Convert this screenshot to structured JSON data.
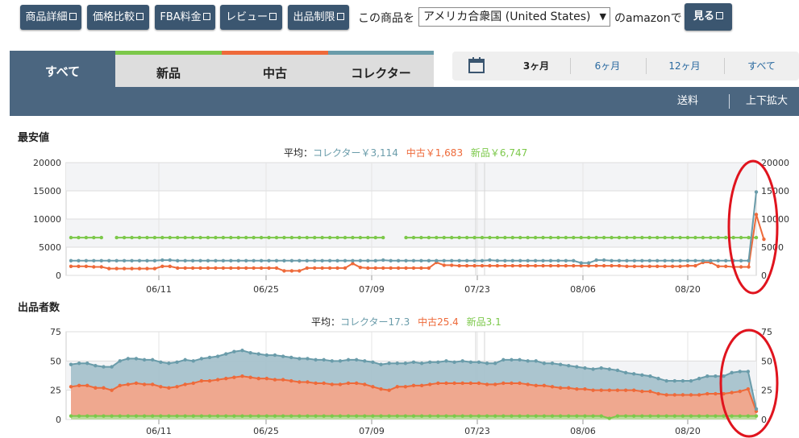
{
  "toolbar": {
    "buttons": [
      {
        "label": "商品詳細",
        "name": "product-detail-button"
      },
      {
        "label": "価格比較",
        "name": "price-compare-button"
      },
      {
        "label": "FBA料金",
        "name": "fba-fee-button"
      },
      {
        "label": "レビュー",
        "name": "review-button"
      },
      {
        "label": "出品制限",
        "name": "listing-restriction-button"
      }
    ],
    "product_label": "この商品を",
    "country_value": "アメリカ合衆国 (United States)",
    "amazon_label": "のamazonで",
    "view_label": "見る"
  },
  "tabs": {
    "all": "すべて",
    "new": "新品",
    "used": "中古",
    "collector": "コレクター"
  },
  "range": {
    "items": [
      "3ヶ月",
      "6ヶ月",
      "12ヶ月",
      "すべて"
    ]
  },
  "bar": {
    "shipping": "送料",
    "zoom": "上下拡大"
  },
  "colors": {
    "collector": "#6a9caa",
    "used": "#ee6a3a",
    "new": "#7cc84a",
    "annotation": "#e0141e"
  },
  "chart_data": [
    {
      "type": "line",
      "title": "最安値",
      "avg_prefix": "平均：",
      "avg_labels": {
        "collector": "コレクター￥3,114",
        "used": "中古￥1,683",
        "new": "新品￥6,747"
      },
      "yticks": [
        0,
        5000,
        10000,
        15000,
        20000
      ],
      "ytick_labels": [
        "0",
        "5000",
        "10000",
        "15000",
        "20000"
      ],
      "ylim": [
        0,
        20000
      ],
      "xticks": [
        "06/11",
        "06/25",
        "07/09",
        "07/23",
        "08/06",
        "08/20"
      ],
      "series": [
        {
          "key": "collector",
          "values": [
            2600,
            2600,
            2600,
            2600,
            2600,
            2600,
            2600,
            2600,
            2600,
            2600,
            2600,
            2600,
            2700,
            2700,
            2600,
            2600,
            2600,
            2600,
            2600,
            2600,
            2600,
            2600,
            2600,
            2600,
            2600,
            2600,
            2600,
            2600,
            2600,
            2600,
            2600,
            2600,
            2600,
            2600,
            2600,
            2600,
            2600,
            2600,
            2600,
            2600,
            2600,
            2700,
            2600,
            2600,
            2600,
            2600,
            2600,
            2600,
            2600,
            2600,
            2600,
            2600,
            2600,
            2600,
            2600,
            2700,
            2600,
            2600,
            2600,
            2600,
            2600,
            2600,
            2600,
            2600,
            2600,
            2600,
            2600,
            2200,
            2200,
            2700,
            2700,
            2600,
            2600,
            2600,
            2600,
            2600,
            2600,
            2600,
            2600,
            2600,
            2600,
            2600,
            2600,
            2600,
            2600,
            2600,
            2600,
            2600,
            2600,
            2600,
            14800
          ]
        },
        {
          "key": "used",
          "values": [
            1600,
            1600,
            1600,
            1500,
            1500,
            1200,
            1200,
            1200,
            1200,
            1200,
            1200,
            1200,
            1600,
            1600,
            1300,
            1300,
            1300,
            1300,
            1300,
            1300,
            1300,
            1300,
            1300,
            1300,
            1300,
            1300,
            1300,
            1300,
            800,
            800,
            800,
            1300,
            1300,
            1300,
            1300,
            1300,
            1300,
            2100,
            1400,
            1300,
            1300,
            1300,
            1300,
            1300,
            1300,
            1300,
            1300,
            1300,
            2300,
            1800,
            1800,
            1700,
            1700,
            1700,
            1700,
            1700,
            1700,
            1700,
            1700,
            1700,
            1700,
            1700,
            1700,
            1700,
            1700,
            1700,
            1700,
            1700,
            1700,
            1700,
            1700,
            1700,
            1700,
            1600,
            1600,
            1600,
            1600,
            1600,
            1600,
            1600,
            1600,
            1700,
            1700,
            2300,
            2300,
            1600,
            1600,
            1500,
            1500,
            1500,
            10800,
            6400
          ]
        },
        {
          "key": "new",
          "values": [
            6700,
            6700,
            6700,
            6700,
            6700,
            null,
            6700,
            6700,
            6700,
            6700,
            6700,
            6700,
            6700,
            6700,
            6700,
            6700,
            6700,
            6700,
            6700,
            6700,
            6700,
            6700,
            6700,
            6700,
            6700,
            6700,
            6700,
            6700,
            6700,
            6700,
            6700,
            6700,
            6700,
            6700,
            6700,
            6700,
            6700,
            6700,
            6700,
            6700,
            6700,
            6700,
            null,
            null,
            6700,
            6700,
            6700,
            6700,
            6700,
            6700,
            6700,
            6700,
            6700,
            6700,
            6700,
            6700,
            6700,
            6700,
            6700,
            6700,
            6700,
            6700,
            6700,
            6700,
            6700,
            6700,
            6700,
            6700,
            6700,
            6700,
            6700,
            6700,
            6700,
            6700,
            6700,
            6700,
            6700,
            6700,
            6700,
            6700,
            6700,
            6700,
            6700,
            6700,
            6700,
            6700,
            6700,
            6700,
            6700,
            6700,
            6700,
            null
          ]
        }
      ]
    },
    {
      "type": "area",
      "title": "出品者数",
      "avg_prefix": "平均：",
      "avg_labels": {
        "collector": "コレクター17.3",
        "used": "中古25.4",
        "new": "新品3.1"
      },
      "yticks": [
        0,
        25,
        50,
        75
      ],
      "ytick_labels": [
        "0",
        "25",
        "50",
        "75"
      ],
      "ylim": [
        0,
        75
      ],
      "xticks": [
        "06/11",
        "06/25",
        "07/09",
        "07/23",
        "08/06",
        "08/20"
      ],
      "series": [
        {
          "key": "collector",
          "values": [
            47,
            48,
            48,
            46,
            45,
            45,
            50,
            52,
            52,
            51,
            51,
            49,
            48,
            49,
            51,
            50,
            52,
            53,
            54,
            56,
            58,
            59,
            57,
            56,
            55,
            55,
            54,
            53,
            52,
            52,
            51,
            51,
            50,
            50,
            51,
            51,
            50,
            49,
            47,
            48,
            48,
            48,
            49,
            48,
            49,
            49,
            50,
            49,
            50,
            49,
            49,
            48,
            48,
            51,
            51,
            51,
            50,
            50,
            48,
            48,
            47,
            46,
            45,
            44,
            43,
            44,
            43,
            42,
            40,
            39,
            38,
            37,
            35,
            33,
            33,
            33,
            33,
            35,
            37,
            37,
            37,
            40,
            41,
            41,
            9
          ]
        },
        {
          "key": "used",
          "values": [
            28,
            29,
            29,
            27,
            27,
            25,
            29,
            30,
            31,
            30,
            30,
            28,
            27,
            28,
            30,
            31,
            33,
            33,
            34,
            35,
            36,
            37,
            36,
            35,
            35,
            34,
            34,
            33,
            32,
            32,
            31,
            31,
            30,
            30,
            31,
            31,
            30,
            28,
            26,
            25,
            28,
            28,
            29,
            29,
            30,
            31,
            31,
            31,
            31,
            31,
            31,
            30,
            30,
            31,
            31,
            31,
            30,
            29,
            29,
            28,
            27,
            27,
            26,
            26,
            25,
            25,
            25,
            25,
            25,
            25,
            24,
            24,
            22,
            21,
            21,
            21,
            21,
            21,
            22,
            22,
            22,
            23,
            24,
            26,
            7
          ]
        },
        {
          "key": "new",
          "values": [
            3,
            3,
            3,
            3,
            3,
            3,
            3,
            3,
            3,
            3,
            3,
            3,
            3,
            3,
            3,
            3,
            3,
            3,
            3,
            3,
            3,
            3,
            3,
            3,
            3,
            3,
            3,
            3,
            3,
            3,
            3,
            3,
            3,
            3,
            3,
            3,
            3,
            3,
            3,
            3,
            3,
            3,
            3,
            3,
            3,
            3,
            3,
            3,
            3,
            3,
            3,
            3,
            3,
            3,
            3,
            3,
            3,
            3,
            3,
            3,
            3,
            3,
            3,
            3,
            3,
            3,
            1,
            3,
            3,
            3,
            3,
            3,
            3,
            3,
            3,
            3,
            3,
            3,
            3,
            3,
            3,
            3,
            3,
            3,
            3
          ]
        }
      ]
    }
  ]
}
